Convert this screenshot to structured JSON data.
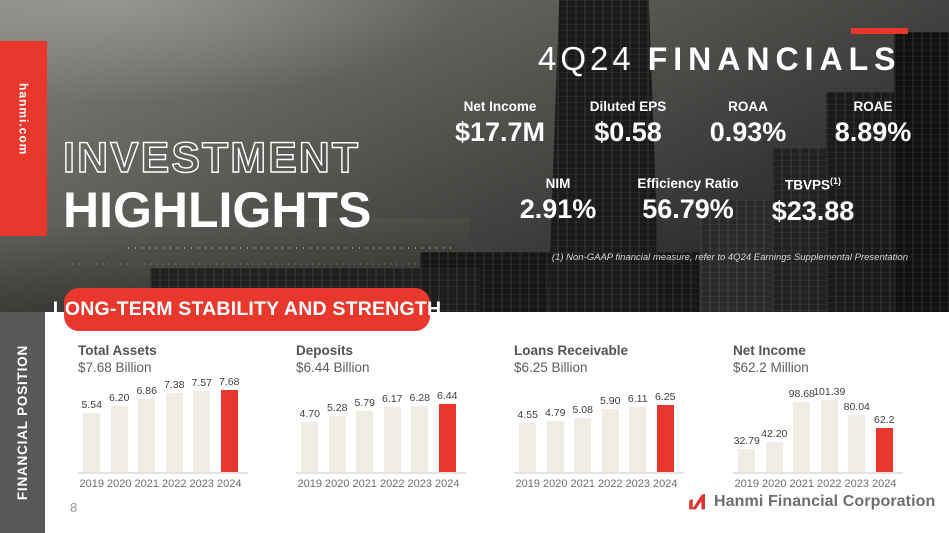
{
  "brand_tab": {
    "site": "hanmi.com"
  },
  "header": {
    "quarter": "4Q24",
    "title": "FINANCIALS"
  },
  "hero": {
    "line1": "INVESTMENT",
    "line2": "HIGHLIGHTS"
  },
  "metrics": {
    "row1": [
      {
        "label": "Net Income",
        "value": "$17.7M"
      },
      {
        "label": "Diluted EPS",
        "value": "$0.58"
      },
      {
        "label": "ROAA",
        "value": "0.93%"
      },
      {
        "label": "ROAE",
        "value": "8.89%"
      }
    ],
    "row2": [
      {
        "label": "NIM",
        "value": "2.91%"
      },
      {
        "label": "Efficiency Ratio",
        "value": "56.79%"
      },
      {
        "label": "TBVPS",
        "label_sup": "(1)",
        "value": "$23.88"
      }
    ]
  },
  "footnote": "(1)  Non-GAAP financial measure, refer to 4Q24 Earnings Supplemental Presentation",
  "banner": "LONG-TERM STABILITY AND STRENGTH",
  "section_tab": "FINANCIAL POSITION",
  "page_number": "8",
  "logo_text": "Hanmi Financial Corporation",
  "colors": {
    "accent_red": "#E8382E",
    "bar_beige": "#F0EDE4",
    "sidebar_gray": "#57585A",
    "title_gray": "#535456"
  },
  "chart_data": [
    {
      "type": "bar",
      "title": "Total Assets",
      "subtitle": "$7.68 Billion",
      "unit": "$ Billions",
      "categories": [
        "2019",
        "2020",
        "2021",
        "2022",
        "2023",
        "2024"
      ],
      "values": [
        5.54,
        6.2,
        6.86,
        7.38,
        7.57,
        7.68
      ],
      "value_labels": [
        "5.54",
        "6.20",
        "6.86",
        "7.38",
        "7.57",
        "7.68"
      ],
      "highlight_index": 5,
      "max_bar_height": 82,
      "grid": false,
      "legend": "none"
    },
    {
      "type": "bar",
      "title": "Deposits",
      "subtitle": "$6.44 Billion",
      "unit": "$ Billions",
      "categories": [
        "2019",
        "2020",
        "2021",
        "2022",
        "2023",
        "2024"
      ],
      "values": [
        4.7,
        5.28,
        5.79,
        6.17,
        6.28,
        6.44
      ],
      "value_labels": [
        "4.70",
        "5.28",
        "5.79",
        "6.17",
        "6.28",
        "6.44"
      ],
      "highlight_index": 5,
      "max_bar_height": 68,
      "grid": false,
      "legend": "none"
    },
    {
      "type": "bar",
      "title": "Loans Receivable",
      "subtitle": "$6.25 Billion",
      "unit": "$ Billions",
      "categories": [
        "2019",
        "2020",
        "2021",
        "2022",
        "2023",
        "2024"
      ],
      "values": [
        4.55,
        4.79,
        5.08,
        5.9,
        6.11,
        6.25
      ],
      "value_labels": [
        "4.55",
        "4.79",
        "5.08",
        "5.90",
        "6.11",
        "6.25"
      ],
      "highlight_index": 5,
      "max_bar_height": 67,
      "grid": false,
      "legend": "none"
    },
    {
      "type": "bar",
      "title": "Net Income",
      "subtitle": "$62.2 Million",
      "unit": "$ Millions",
      "categories": [
        "2019",
        "2020",
        "2021",
        "2022",
        "2023",
        "2024"
      ],
      "values": [
        32.79,
        42.2,
        98.68,
        101.39,
        80.04,
        62.2
      ],
      "value_labels": [
        "32.79",
        "42.20",
        "98.68",
        "101.39",
        "80.04",
        "62.2"
      ],
      "highlight_index": 5,
      "max_bar_height": 72,
      "grid": false,
      "legend": "none"
    }
  ]
}
